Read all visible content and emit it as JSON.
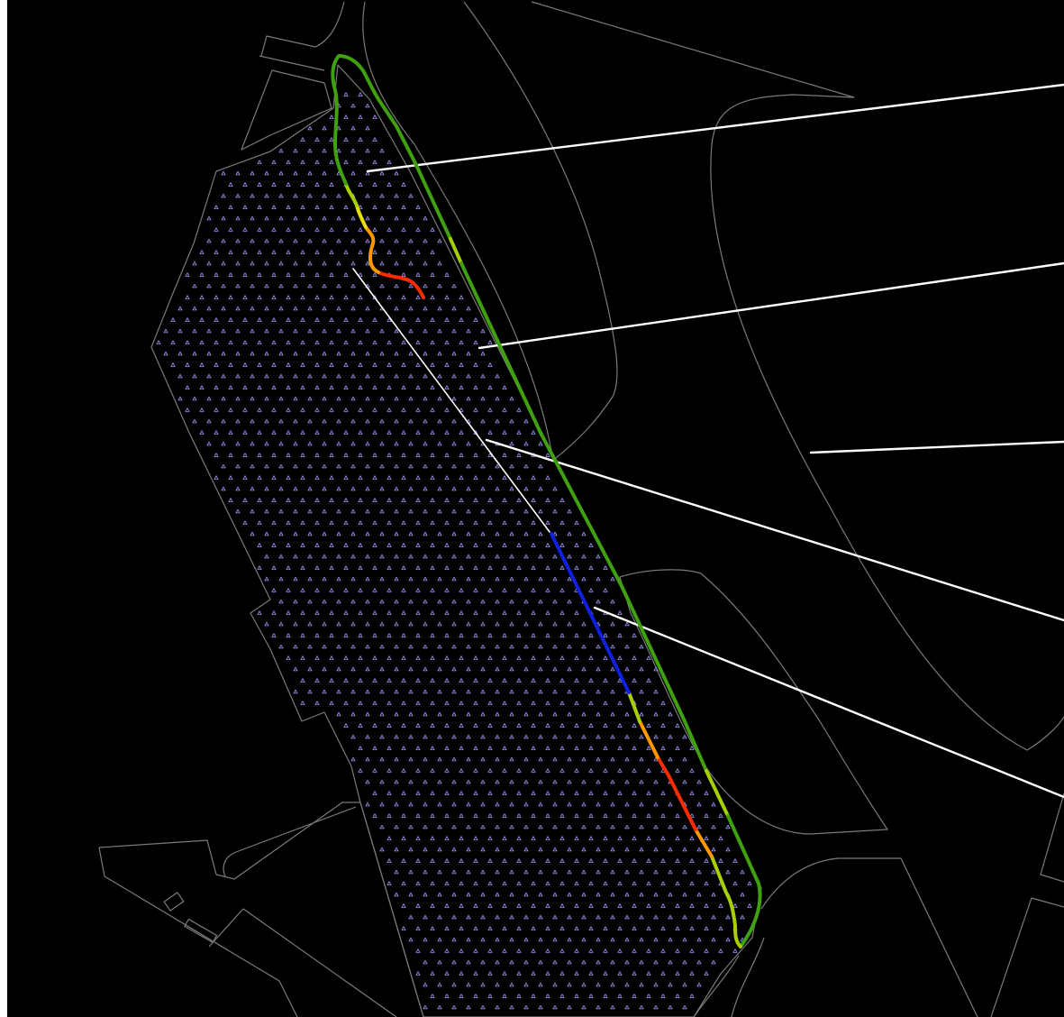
{
  "map": {
    "background": "#000000",
    "outline_color": "#7a7a7a",
    "leader_color": "#ffffff",
    "marker_color": "#9aa0ff",
    "marker_icon": "triangle-marker-icon",
    "segment_colors": {
      "green": "#3fa010",
      "yellow_green": "#a8d000",
      "yellow": "#e8e000",
      "orange": "#ff9900",
      "red": "#ff2a00",
      "blue": "#1020e0"
    }
  }
}
